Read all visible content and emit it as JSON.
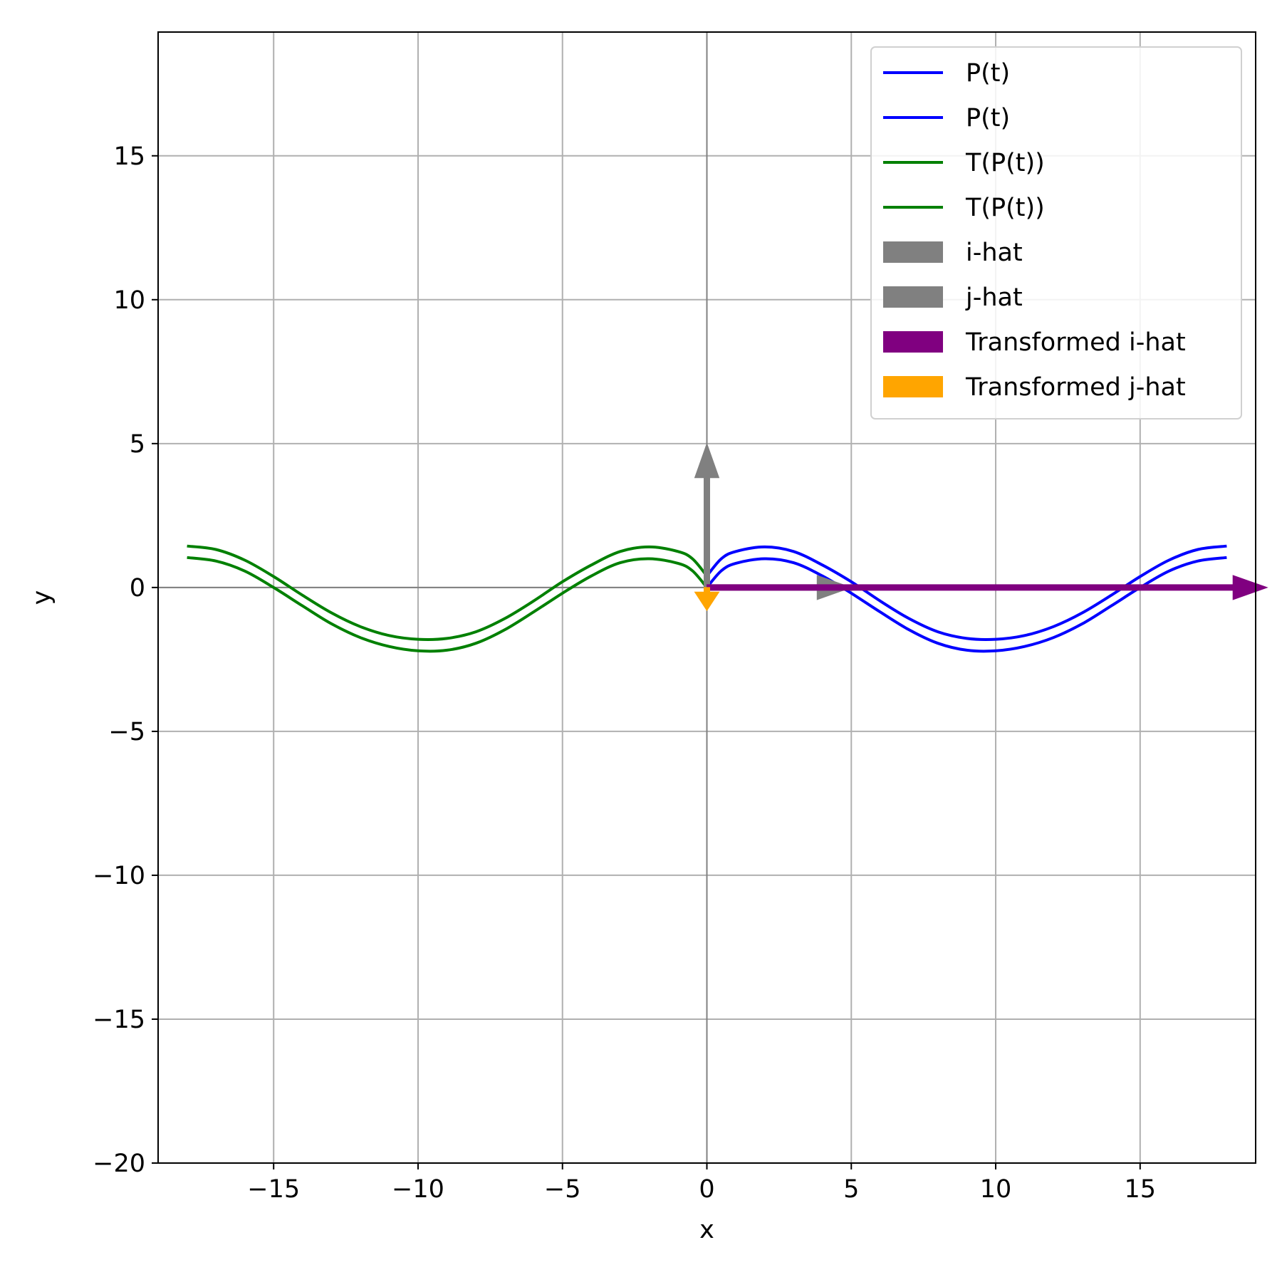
{
  "chart_data": {
    "type": "line",
    "xlabel": "x",
    "ylabel": "y",
    "xlim": [
      -19,
      19
    ],
    "ylim": [
      -20,
      19.3
    ],
    "grid": true,
    "legend_position": "upper right",
    "x_ticks": [
      -15,
      -10,
      -5,
      0,
      5,
      10,
      15
    ],
    "x_tick_labels": [
      "−15",
      "−10",
      "−5",
      "0",
      "5",
      "10",
      "15"
    ],
    "y_ticks": [
      -20,
      -15,
      -10,
      -5,
      0,
      5,
      10,
      15
    ],
    "y_tick_labels": [
      "−20",
      "−15",
      "−10",
      "−5",
      "0",
      "5",
      "10",
      "15"
    ],
    "reference_lines": {
      "x": 0,
      "y": 0,
      "color": "#808080"
    },
    "series": [
      {
        "name": "P(t)",
        "color": "#0000ff",
        "x": [
          0,
          0.5,
          1,
          2,
          3,
          4,
          5,
          6,
          7,
          8,
          9,
          10,
          11,
          12,
          13,
          14,
          15,
          16,
          17,
          18
        ],
        "y": [
          0.4,
          1.0,
          1.25,
          1.41,
          1.25,
          0.78,
          0.2,
          -0.47,
          -1.08,
          -1.54,
          -1.77,
          -1.8,
          -1.67,
          -1.36,
          -0.88,
          -0.27,
          0.38,
          0.95,
          1.32,
          1.44
        ]
      },
      {
        "name": "P(t)",
        "color": "#0000ff",
        "x": [
          0,
          0.5,
          1,
          2,
          3,
          4,
          5,
          6,
          7,
          8,
          9,
          10,
          11,
          12,
          13,
          14,
          15,
          16,
          17,
          18
        ],
        "y": [
          0.0,
          0.58,
          0.84,
          1.0,
          0.86,
          0.4,
          -0.2,
          -0.85,
          -1.47,
          -1.94,
          -2.18,
          -2.2,
          -2.05,
          -1.74,
          -1.26,
          -0.64,
          0.0,
          0.57,
          0.92,
          1.04
        ]
      },
      {
        "name": "T(P(t))",
        "color": "#008000",
        "x": [
          0,
          -0.5,
          -1,
          -2,
          -3,
          -4,
          -5,
          -6,
          -7,
          -8,
          -9,
          -10,
          -11,
          -12,
          -13,
          -14,
          -15,
          -16,
          -17,
          -18
        ],
        "y": [
          0.4,
          1.0,
          1.25,
          1.41,
          1.25,
          0.78,
          0.2,
          -0.47,
          -1.08,
          -1.54,
          -1.77,
          -1.8,
          -1.67,
          -1.36,
          -0.88,
          -0.27,
          0.38,
          0.95,
          1.32,
          1.44
        ]
      },
      {
        "name": "T(P(t))",
        "color": "#008000",
        "x": [
          0,
          -0.5,
          -1,
          -2,
          -3,
          -4,
          -5,
          -6,
          -7,
          -8,
          -9,
          -10,
          -11,
          -12,
          -13,
          -14,
          -15,
          -16,
          -17,
          -18
        ],
        "y": [
          0.0,
          0.58,
          0.84,
          1.0,
          0.86,
          0.4,
          -0.2,
          -0.85,
          -1.47,
          -1.94,
          -2.18,
          -2.2,
          -2.05,
          -1.74,
          -1.26,
          -0.64,
          0.0,
          0.57,
          0.92,
          1.04
        ]
      }
    ],
    "arrows": [
      {
        "name": "i-hat",
        "color": "#808080",
        "x0": 0,
        "y0": 0,
        "dx": 5,
        "dy": 0
      },
      {
        "name": "j-hat",
        "color": "#808080",
        "x0": 0,
        "y0": 0,
        "dx": 0,
        "dy": 5
      },
      {
        "name": "Transformed i-hat",
        "color": "#800080",
        "x0": 0,
        "y0": 0,
        "dx": 19.4,
        "dy": 0
      },
      {
        "name": "Transformed j-hat",
        "color": "#ffa500",
        "x0": 0,
        "y0": 0,
        "dx": 0,
        "dy": -0.8
      }
    ],
    "legend": [
      {
        "label": "P(t)",
        "kind": "line",
        "color": "#0000ff"
      },
      {
        "label": "P(t)",
        "kind": "line",
        "color": "#0000ff"
      },
      {
        "label": "T(P(t))",
        "kind": "line",
        "color": "#008000"
      },
      {
        "label": "T(P(t))",
        "kind": "line",
        "color": "#008000"
      },
      {
        "label": "i-hat",
        "kind": "patch",
        "color": "#808080"
      },
      {
        "label": "j-hat",
        "kind": "patch",
        "color": "#808080"
      },
      {
        "label": "Transformed i-hat",
        "kind": "patch",
        "color": "#800080"
      },
      {
        "label": "Transformed j-hat",
        "kind": "patch",
        "color": "#ffa500"
      }
    ]
  }
}
